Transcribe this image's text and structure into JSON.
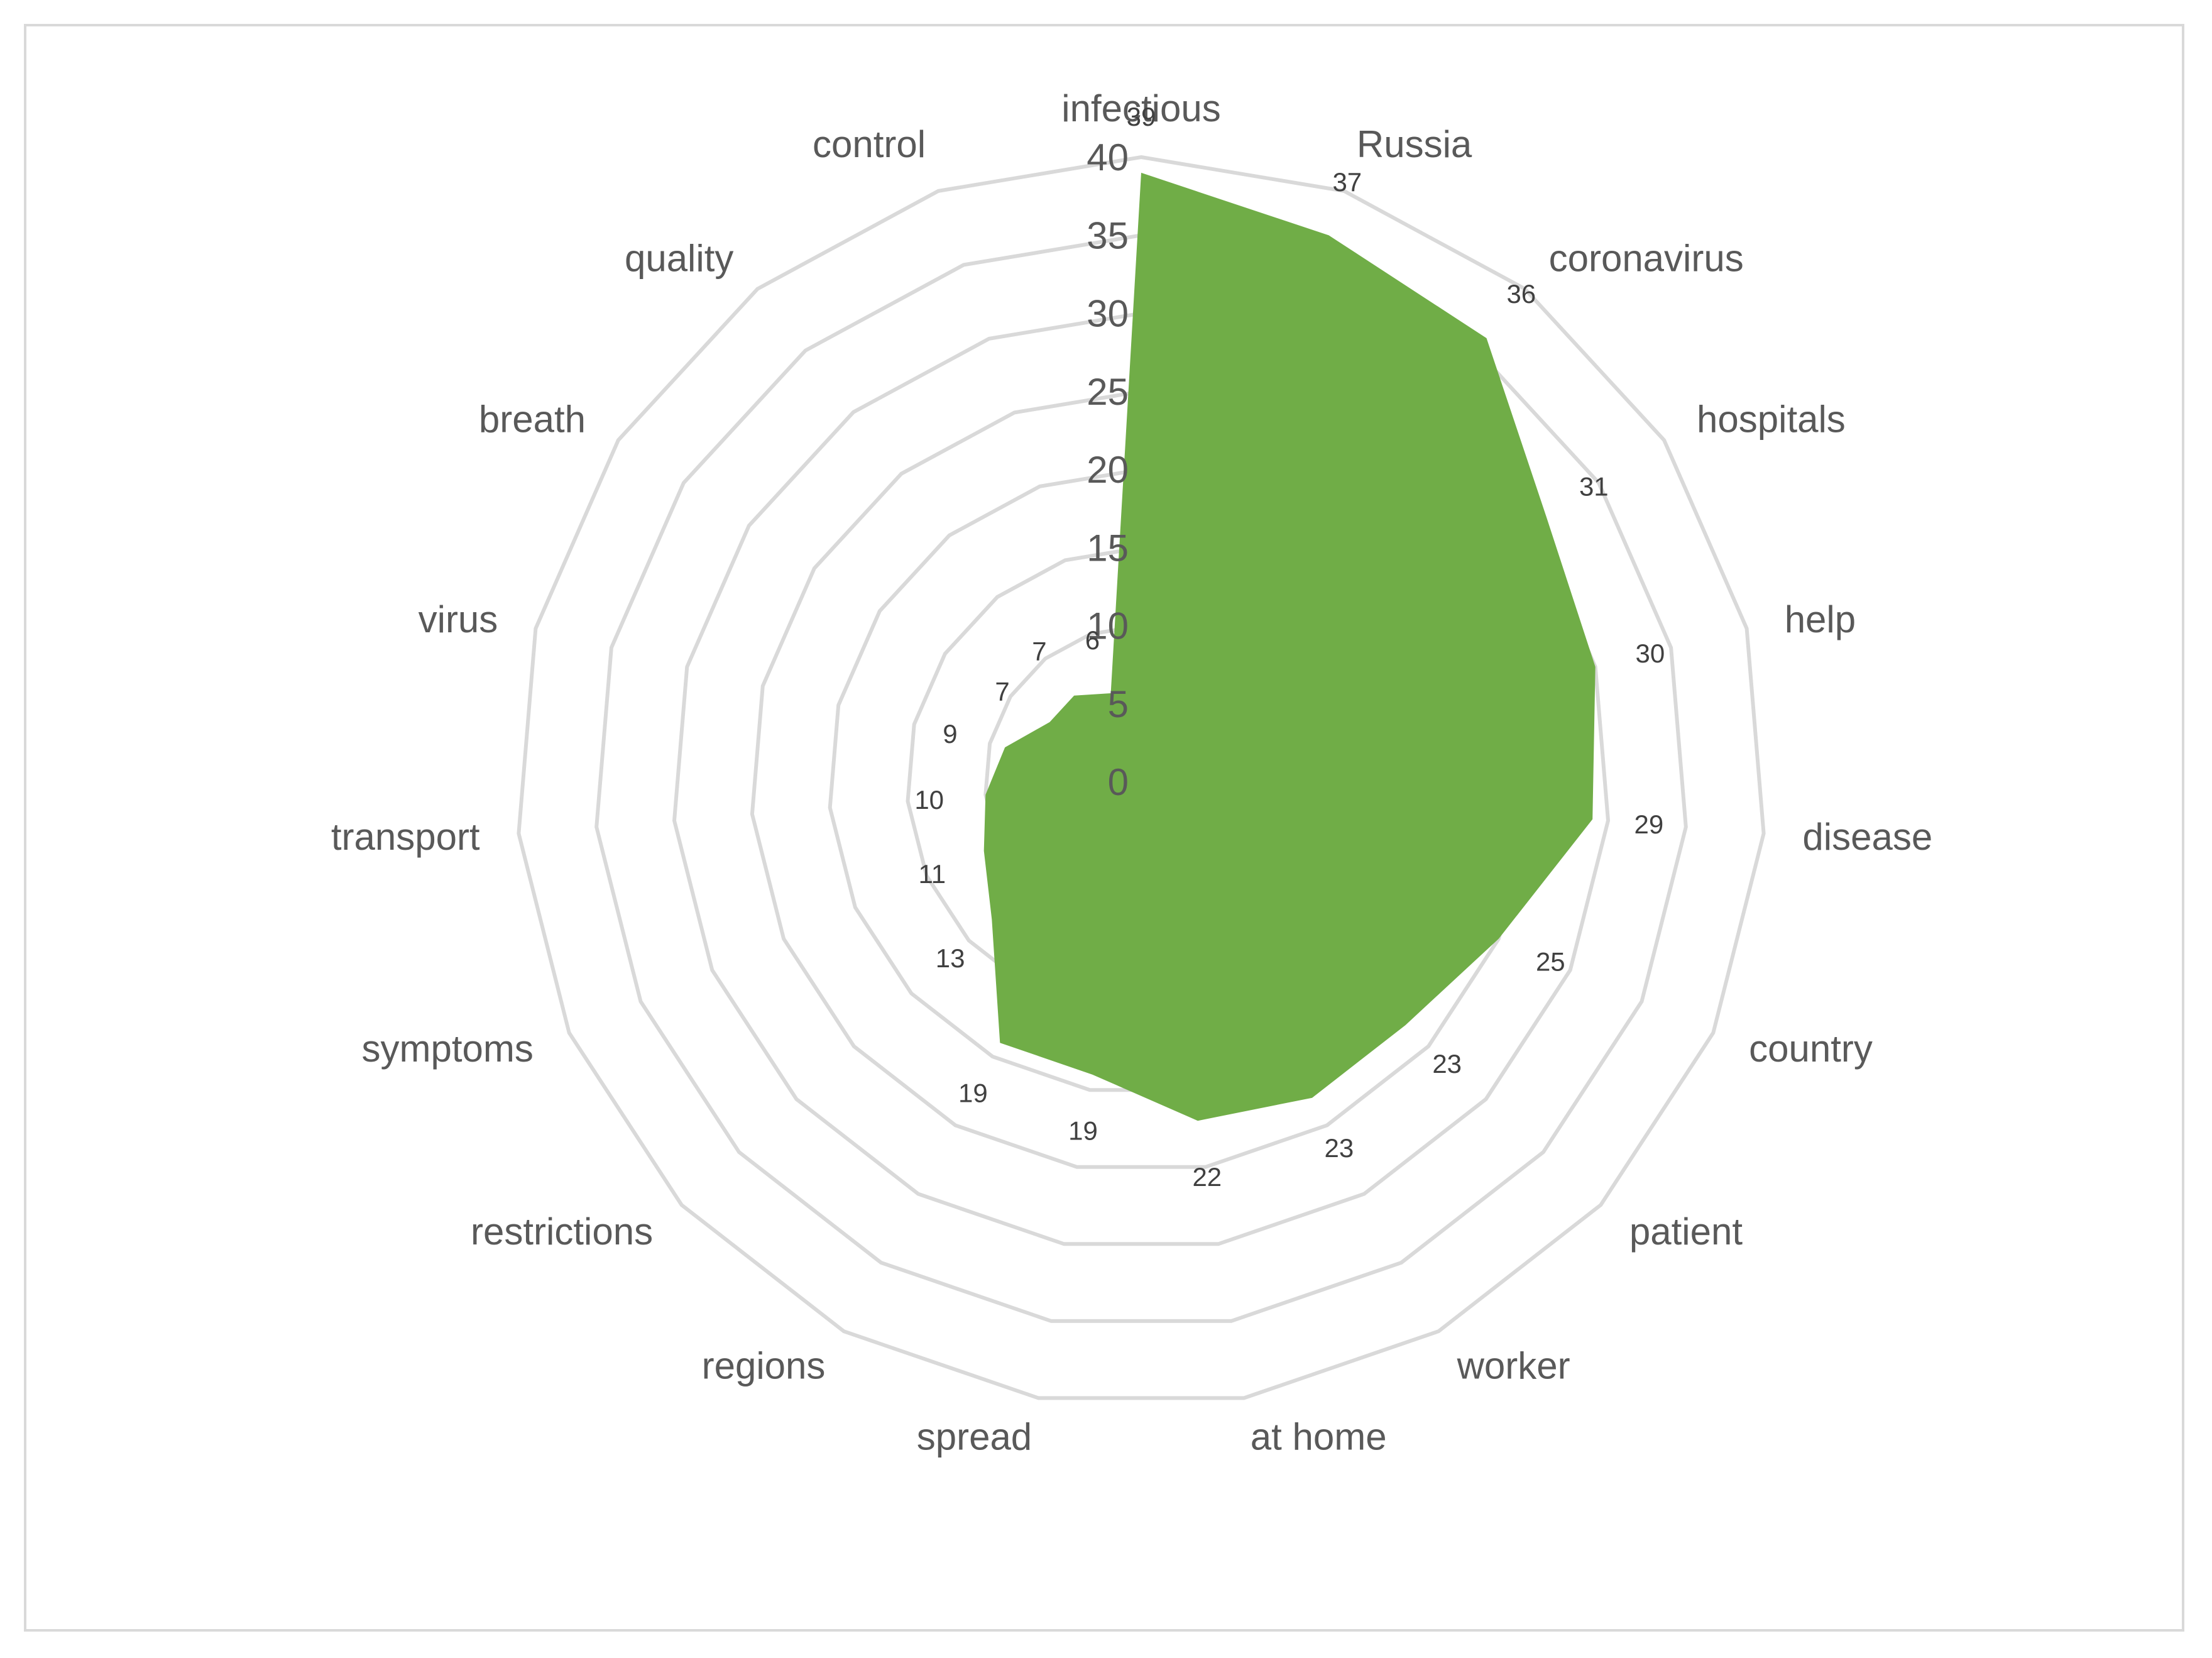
{
  "chart_data": {
    "type": "radar",
    "title": "",
    "categories": [
      "infectious",
      "Russia",
      "coronavirus",
      "hospitals",
      "help",
      "disease",
      "country",
      "patient",
      "worker",
      "at home",
      "spread",
      "regions",
      "restrictions",
      "symptoms",
      "transport",
      "virus",
      "breath",
      "quality",
      "control"
    ],
    "series": [
      {
        "values": [
          39,
          37,
          36,
          31,
          30,
          29,
          25,
          23,
          23,
          22,
          19,
          19,
          13,
          11,
          10,
          9,
          7,
          7,
          6
        ],
        "color": "#70ad47"
      }
    ],
    "data_labels": [
      "39",
      "37",
      "36",
      "31",
      "30",
      "29",
      "25",
      "23",
      "23",
      "22",
      "19",
      "19",
      "13",
      "11",
      "10",
      "9",
      "7",
      "7",
      "6"
    ],
    "r_ticks": [
      0,
      5,
      10,
      15,
      20,
      25,
      30,
      35,
      40
    ],
    "r_tick_labels": [
      "0",
      "5",
      "10",
      "15",
      "20",
      "25",
      "30",
      "35",
      "40"
    ],
    "rlim": [
      0,
      40
    ],
    "grid": true,
    "legend": "none"
  }
}
